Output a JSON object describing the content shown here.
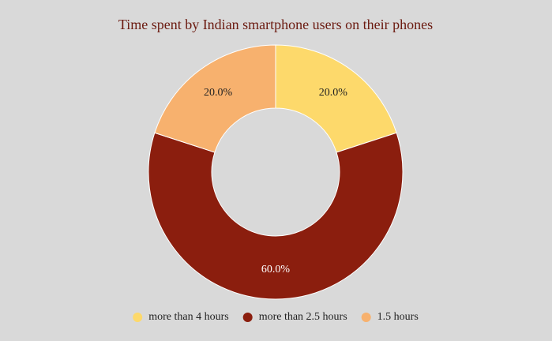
{
  "chart_data": {
    "type": "donut",
    "title": "Time spent by Indian smartphone users on their phones",
    "categories": [
      "more than 4 hours",
      "more than 2.5 hours",
      "1.5 hours"
    ],
    "values": [
      20,
      60,
      20
    ],
    "value_labels": [
      "20.0%",
      "60.0%",
      "20.0%"
    ],
    "colors": [
      "#fdd96b",
      "#8b1e0e",
      "#f7b16e"
    ],
    "legend": "bottom"
  }
}
